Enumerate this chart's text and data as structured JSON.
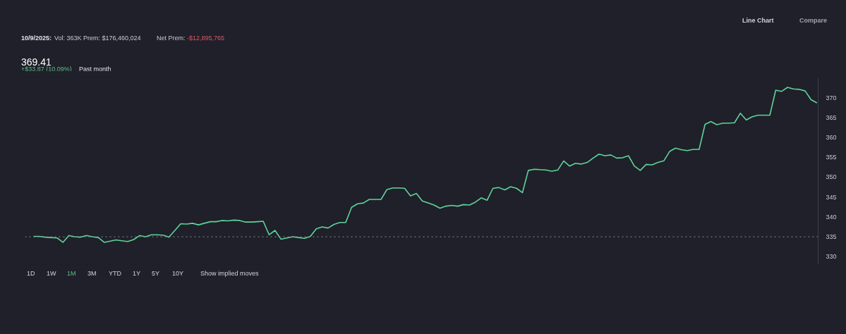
{
  "chart_data": {
    "type": "line",
    "title": "369.41",
    "subtitle": "+$33.87 (10.09%)",
    "annotations": [
      "10/9/2025:",
      "Vol: 363K",
      "Prem: $176,460,024",
      "Net Prem:",
      "-$12,895,765",
      "Line Chart",
      "Compare",
      "1D",
      "1W",
      "1M",
      "3M",
      "YTD",
      "1Y",
      "5Y",
      "10Y",
      "Show implied moves",
      "Past month"
    ],
    "categories": [
      null,
      null,
      null,
      null,
      null,
      null,
      null,
      null,
      null,
      null,
      null,
      null,
      null,
      null,
      null,
      null,
      null,
      null,
      null,
      null,
      null,
      null,
      null,
      null,
      null,
      null,
      null,
      null,
      null,
      null,
      null,
      null,
      null,
      null,
      null,
      null,
      null,
      null,
      null,
      null,
      null,
      null,
      null,
      null,
      null,
      null,
      null,
      null,
      null,
      null,
      null,
      null,
      null,
      null,
      null,
      null,
      null,
      null,
      null,
      null,
      null,
      null,
      null,
      null,
      null,
      null,
      null,
      null,
      null,
      null,
      null,
      null,
      null,
      null,
      null,
      null,
      null,
      null,
      null,
      null,
      null,
      null,
      null,
      null,
      null,
      null,
      null,
      null,
      null,
      null,
      null,
      null,
      null,
      null,
      null,
      null,
      null,
      null,
      null,
      null,
      null,
      null,
      null,
      null,
      null,
      null,
      null,
      null,
      null,
      null,
      null,
      null,
      null,
      null,
      null,
      null,
      null,
      null,
      null,
      null,
      null,
      null,
      null,
      null,
      null,
      null,
      null,
      null,
      null,
      null,
      null,
      null,
      null,
      null
    ],
    "series": [
      {
        "color": "#5fd39a",
        "values": [
          335.1,
          335.1,
          334.9,
          334.8,
          334.7,
          333.6,
          335.3,
          335.0,
          334.9,
          335.3,
          335.0,
          334.8,
          333.6,
          333.9,
          334.2,
          334.0,
          333.8,
          334.3,
          335.3,
          335.0,
          335.5,
          335.5,
          335.4,
          334.9,
          336.6,
          338.3,
          338.2,
          338.4,
          338.0,
          338.4,
          338.8,
          338.8,
          339.1,
          339.0,
          339.2,
          339.1,
          338.7,
          338.7,
          338.8,
          338.9,
          335.5,
          336.6,
          334.4,
          334.7,
          335.0,
          334.8,
          334.6,
          335.1,
          337.0,
          337.5,
          337.2,
          338.1,
          338.6,
          338.6,
          342.4,
          343.3,
          343.5,
          344.4,
          344.4,
          344.4,
          346.9,
          347.3,
          347.3,
          347.2,
          345.3,
          345.9,
          344.0,
          343.5,
          343.0,
          342.2,
          342.7,
          342.9,
          342.7,
          343.1,
          343.0,
          343.7,
          344.8,
          344.2,
          347.2,
          347.4,
          346.8,
          347.6,
          347.2,
          346.1,
          351.7,
          352.0,
          351.9,
          351.8,
          351.5,
          351.8,
          354.1,
          352.8,
          353.5,
          353.3,
          353.7,
          354.8,
          355.8,
          355.4,
          355.6,
          354.8,
          354.9,
          355.4,
          352.8,
          351.7,
          353.2,
          353.1,
          353.7,
          354.1,
          356.5,
          357.3,
          356.9,
          356.7,
          357.0,
          357.0,
          363.3,
          364.0,
          363.2,
          363.6,
          363.6,
          363.7,
          366.1,
          364.4,
          365.2,
          365.6,
          365.6,
          365.6,
          371.9,
          371.6,
          372.6,
          372.2,
          372.1,
          371.7,
          369.5,
          368.7
        ]
      }
    ],
    "ylim": [
      328,
      375
    ],
    "yticks": [
      330,
      335,
      340,
      345,
      350,
      355,
      360,
      365,
      370
    ],
    "ref_lines": [
      {
        "axis": "y",
        "value": 335,
        "color": "#8a8d96",
        "line_style": "dotted"
      }
    ],
    "grid": false,
    "tick_labels": "y",
    "line_style": "solid"
  }
}
